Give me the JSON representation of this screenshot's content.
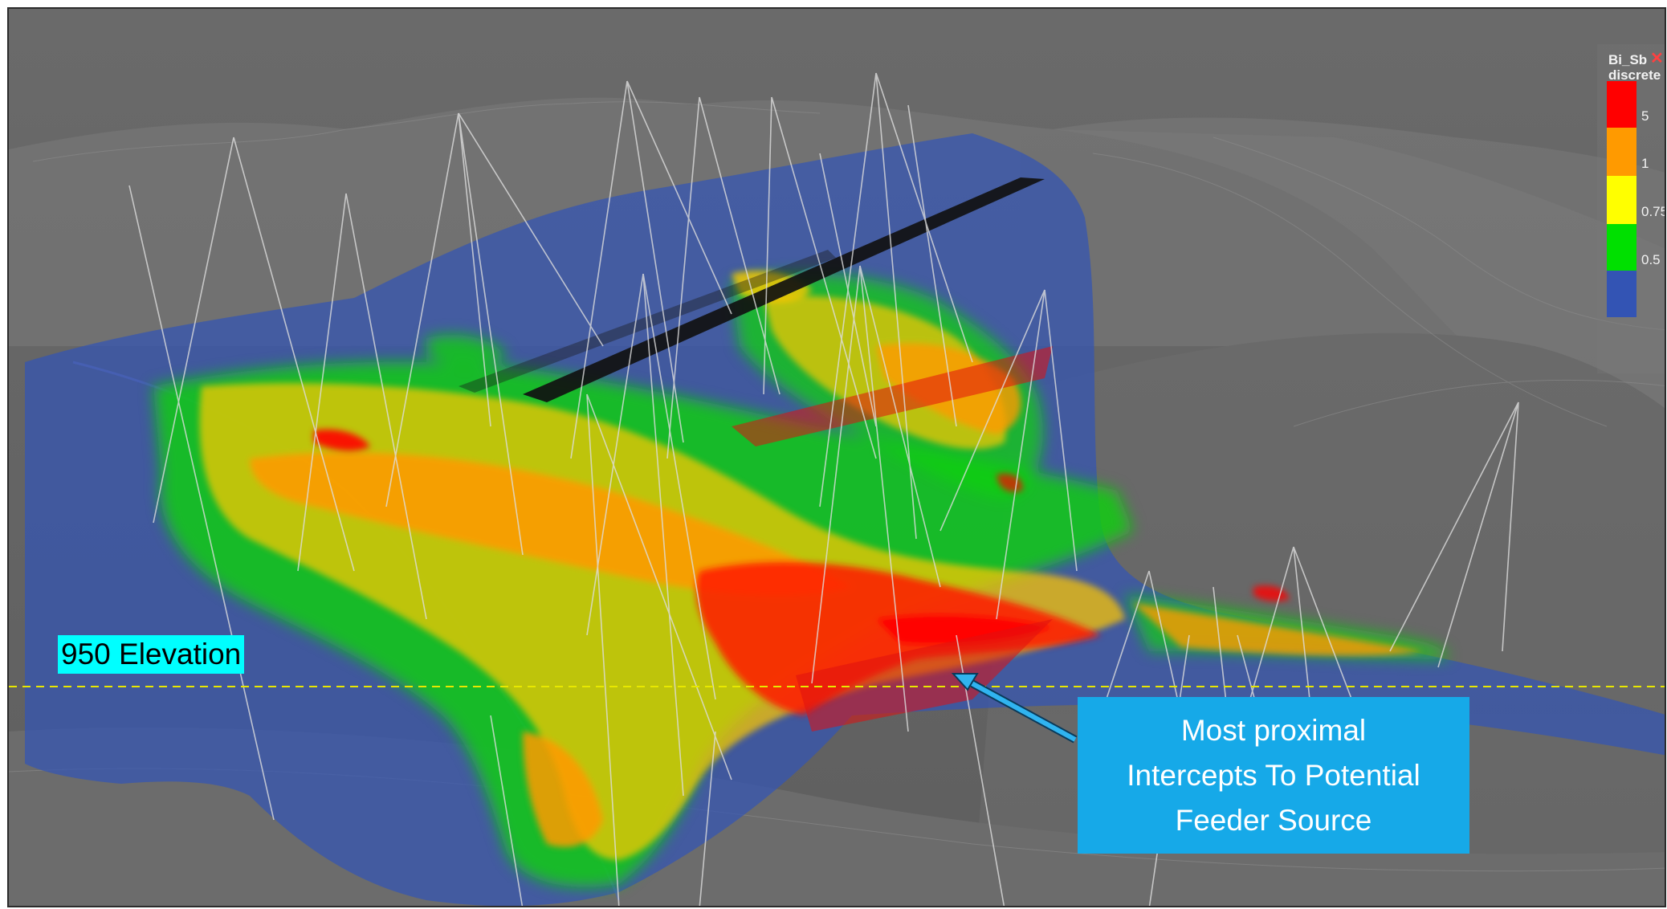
{
  "legend": {
    "title": "Bi_Sb",
    "subtitle": "discrete",
    "close_icon": "close-icon",
    "entries": [
      {
        "color": "#ff0000",
        "label": "5"
      },
      {
        "color": "#ff9a00",
        "label": "1"
      },
      {
        "color": "#ffff00",
        "label": "0.75"
      },
      {
        "color": "#00e000",
        "label": "0.5"
      },
      {
        "color": "#3354b4",
        "label": ""
      }
    ]
  },
  "annotations": {
    "elevation_label": "950 Elevation",
    "callout_lines": [
      "Most proximal",
      "Intercepts To Potential",
      "Feeder Source"
    ]
  },
  "colors": {
    "background": "#6c6c6c",
    "envelope_blue": "#3354b4",
    "elevation_line": "#e8e800",
    "arrow": "#30b4f0"
  }
}
